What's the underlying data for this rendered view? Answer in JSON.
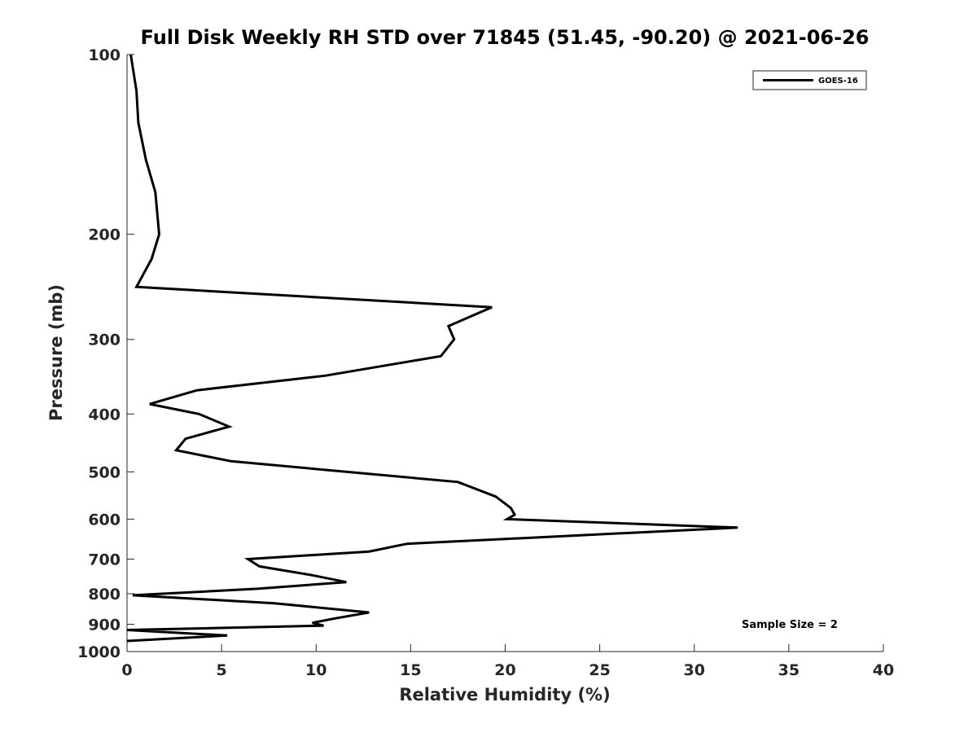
{
  "chart_data": {
    "type": "line",
    "title": "Full Disk Weekly RH STD over 71845 (51.45, -90.20) @ 2021-06-26",
    "xlabel": "Relative Humidity (%)",
    "ylabel": "Pressure (mb)",
    "xlim": [
      0,
      40
    ],
    "ylim": [
      100,
      1000
    ],
    "yscale": "log",
    "y_reversed": true,
    "grid": false,
    "x_ticks": [
      0,
      5,
      10,
      15,
      20,
      25,
      30,
      35,
      40
    ],
    "x_tick_labels": [
      "0",
      "5",
      "10",
      "15",
      "20",
      "25",
      "30",
      "35",
      "40"
    ],
    "y_ticks": [
      100,
      200,
      300,
      400,
      500,
      600,
      700,
      800,
      900,
      1000
    ],
    "y_tick_labels": [
      "100",
      "200",
      "300",
      "400",
      "500",
      "600",
      "700",
      "800",
      "900",
      "1000"
    ],
    "legend": {
      "placement": "top-right",
      "entries": [
        "GOES-16"
      ]
    },
    "annotations": [
      "Sample Size = 2"
    ],
    "series": [
      {
        "name": "GOES-16",
        "color": "#000000",
        "x": [
          0.2,
          0.5,
          0.6,
          1.0,
          1.5,
          1.7,
          1.3,
          0.5,
          19.3,
          17.0,
          17.3,
          16.6,
          10.5,
          3.7,
          1.2,
          3.8,
          5.4,
          3.1,
          2.6,
          5.5,
          17.5,
          19.5,
          20.3,
          20.5,
          20.1,
          32.3,
          14.8,
          12.8,
          6.4,
          7.0,
          9.8,
          11.6,
          6.9,
          0.3,
          7.8,
          12.8,
          11.0,
          9.8,
          10.4,
          0.0,
          5.3,
          0.0
        ],
        "y": [
          100,
          115,
          130,
          150,
          170,
          200,
          220,
          245,
          265,
          285,
          300,
          320,
          345,
          365,
          385,
          400,
          420,
          440,
          460,
          480,
          520,
          550,
          575,
          590,
          600,
          620,
          660,
          680,
          700,
          720,
          745,
          765,
          785,
          805,
          830,
          860,
          880,
          895,
          905,
          920,
          940,
          960
        ]
      }
    ]
  }
}
